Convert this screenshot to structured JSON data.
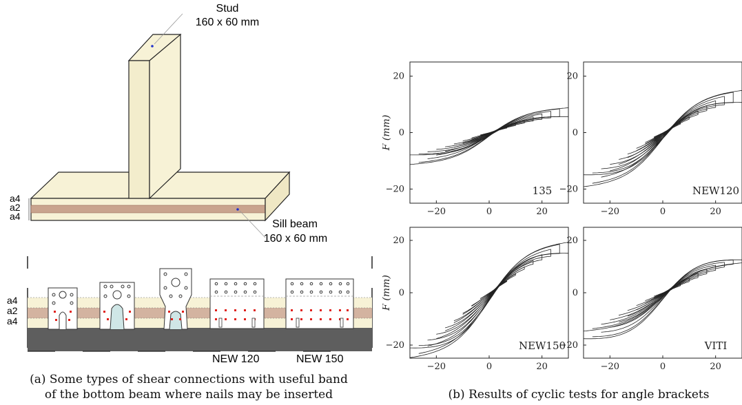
{
  "figure_a": {
    "stud_label": "Stud",
    "stud_dims": "160 x 60 mm",
    "sill_label": "Sill beam",
    "sill_dims": "160 x 60 mm",
    "layer_labels": [
      "a4",
      "a2",
      "a4"
    ],
    "bracket_labels": [
      "NEW 120",
      "NEW 150"
    ],
    "caption_line1": "(a) Some types of shear connections with useful band",
    "caption_line2": "of the bottom beam where nails may be inserted",
    "colors": {
      "wood": "#f7f2d6",
      "band": "#c9a48e",
      "nail": "#e0201b",
      "base": "#5e5e5e"
    }
  },
  "figure_b": {
    "caption": "(b) Results of cyclic tests for angle brackets",
    "ylabel": "F (mm)"
  },
  "chart_data": [
    {
      "type": "line",
      "panel": "135",
      "title": "135",
      "xlim": [
        -30,
        30
      ],
      "ylim": [
        -25,
        25
      ],
      "xticks": [
        "−20",
        "0",
        "20"
      ],
      "yticks": [
        "20",
        "0",
        "−20"
      ],
      "ylabel": "F (mm)",
      "peak_force": [
        -9,
        10
      ]
    },
    {
      "type": "line",
      "panel": "NEW120",
      "title": "NEW120",
      "xlim": [
        -30,
        30
      ],
      "ylim": [
        -25,
        25
      ],
      "xticks": [
        "−20",
        "0",
        "20"
      ],
      "yticks": [
        "20",
        "0",
        "−20"
      ],
      "ylabel": "",
      "peak_force": [
        -17,
        17
      ]
    },
    {
      "type": "line",
      "panel": "NEW150",
      "title": "NEW150",
      "xlim": [
        -30,
        30
      ],
      "ylim": [
        -25,
        25
      ],
      "xticks": [
        "−20",
        "0",
        "20"
      ],
      "yticks": [
        "20",
        "0",
        "−20"
      ],
      "ylabel": "F (mm)",
      "peak_force": [
        -24,
        22
      ]
    },
    {
      "type": "line",
      "panel": "VITI",
      "title": "VITI",
      "xlim": [
        -30,
        30
      ],
      "ylim": [
        -25,
        25
      ],
      "xticks": [
        "−20",
        "0",
        "20"
      ],
      "yticks": [
        "20",
        "0",
        "−20"
      ],
      "ylabel": "",
      "peak_force": [
        -20,
        13
      ]
    }
  ]
}
